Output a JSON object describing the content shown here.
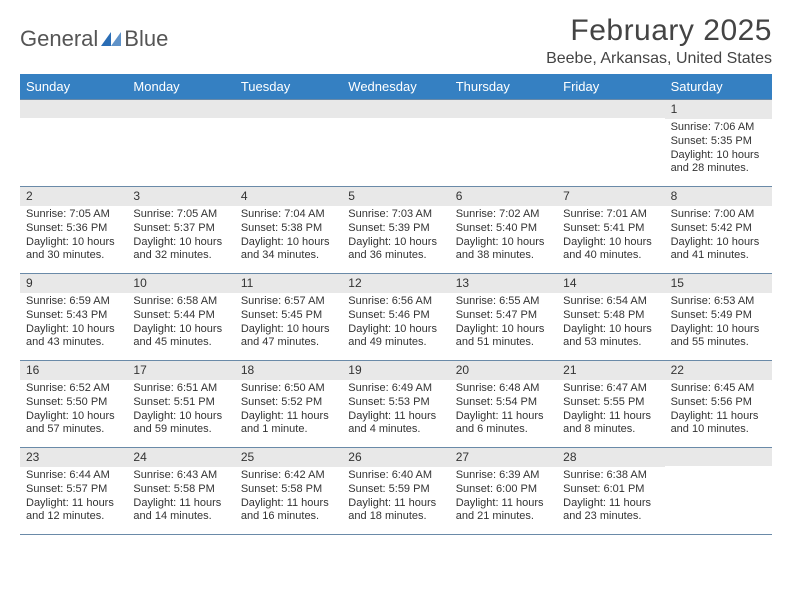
{
  "brand": {
    "textLeft": "General",
    "textRight": "Blue",
    "markColor": "#2a6db5",
    "textColor": "#555555"
  },
  "title": {
    "month": "February 2025",
    "location": "Beebe, Arkansas, United States"
  },
  "colors": {
    "headerBg": "#3580c2",
    "headerFg": "#ffffff",
    "numBg": "#e8e8e8",
    "cellBorder": "#6a8aa8",
    "bodyText": "#333333"
  },
  "dayNames": [
    "Sunday",
    "Monday",
    "Tuesday",
    "Wednesday",
    "Thursday",
    "Friday",
    "Saturday"
  ],
  "weeks": [
    [
      null,
      null,
      null,
      null,
      null,
      null,
      {
        "n": "1",
        "sunrise": "Sunrise: 7:06 AM",
        "sunset": "Sunset: 5:35 PM",
        "day1": "Daylight: 10 hours",
        "day2": "and 28 minutes."
      }
    ],
    [
      {
        "n": "2",
        "sunrise": "Sunrise: 7:05 AM",
        "sunset": "Sunset: 5:36 PM",
        "day1": "Daylight: 10 hours",
        "day2": "and 30 minutes."
      },
      {
        "n": "3",
        "sunrise": "Sunrise: 7:05 AM",
        "sunset": "Sunset: 5:37 PM",
        "day1": "Daylight: 10 hours",
        "day2": "and 32 minutes."
      },
      {
        "n": "4",
        "sunrise": "Sunrise: 7:04 AM",
        "sunset": "Sunset: 5:38 PM",
        "day1": "Daylight: 10 hours",
        "day2": "and 34 minutes."
      },
      {
        "n": "5",
        "sunrise": "Sunrise: 7:03 AM",
        "sunset": "Sunset: 5:39 PM",
        "day1": "Daylight: 10 hours",
        "day2": "and 36 minutes."
      },
      {
        "n": "6",
        "sunrise": "Sunrise: 7:02 AM",
        "sunset": "Sunset: 5:40 PM",
        "day1": "Daylight: 10 hours",
        "day2": "and 38 minutes."
      },
      {
        "n": "7",
        "sunrise": "Sunrise: 7:01 AM",
        "sunset": "Sunset: 5:41 PM",
        "day1": "Daylight: 10 hours",
        "day2": "and 40 minutes."
      },
      {
        "n": "8",
        "sunrise": "Sunrise: 7:00 AM",
        "sunset": "Sunset: 5:42 PM",
        "day1": "Daylight: 10 hours",
        "day2": "and 41 minutes."
      }
    ],
    [
      {
        "n": "9",
        "sunrise": "Sunrise: 6:59 AM",
        "sunset": "Sunset: 5:43 PM",
        "day1": "Daylight: 10 hours",
        "day2": "and 43 minutes."
      },
      {
        "n": "10",
        "sunrise": "Sunrise: 6:58 AM",
        "sunset": "Sunset: 5:44 PM",
        "day1": "Daylight: 10 hours",
        "day2": "and 45 minutes."
      },
      {
        "n": "11",
        "sunrise": "Sunrise: 6:57 AM",
        "sunset": "Sunset: 5:45 PM",
        "day1": "Daylight: 10 hours",
        "day2": "and 47 minutes."
      },
      {
        "n": "12",
        "sunrise": "Sunrise: 6:56 AM",
        "sunset": "Sunset: 5:46 PM",
        "day1": "Daylight: 10 hours",
        "day2": "and 49 minutes."
      },
      {
        "n": "13",
        "sunrise": "Sunrise: 6:55 AM",
        "sunset": "Sunset: 5:47 PM",
        "day1": "Daylight: 10 hours",
        "day2": "and 51 minutes."
      },
      {
        "n": "14",
        "sunrise": "Sunrise: 6:54 AM",
        "sunset": "Sunset: 5:48 PM",
        "day1": "Daylight: 10 hours",
        "day2": "and 53 minutes."
      },
      {
        "n": "15",
        "sunrise": "Sunrise: 6:53 AM",
        "sunset": "Sunset: 5:49 PM",
        "day1": "Daylight: 10 hours",
        "day2": "and 55 minutes."
      }
    ],
    [
      {
        "n": "16",
        "sunrise": "Sunrise: 6:52 AM",
        "sunset": "Sunset: 5:50 PM",
        "day1": "Daylight: 10 hours",
        "day2": "and 57 minutes."
      },
      {
        "n": "17",
        "sunrise": "Sunrise: 6:51 AM",
        "sunset": "Sunset: 5:51 PM",
        "day1": "Daylight: 10 hours",
        "day2": "and 59 minutes."
      },
      {
        "n": "18",
        "sunrise": "Sunrise: 6:50 AM",
        "sunset": "Sunset: 5:52 PM",
        "day1": "Daylight: 11 hours",
        "day2": "and 1 minute."
      },
      {
        "n": "19",
        "sunrise": "Sunrise: 6:49 AM",
        "sunset": "Sunset: 5:53 PM",
        "day1": "Daylight: 11 hours",
        "day2": "and 4 minutes."
      },
      {
        "n": "20",
        "sunrise": "Sunrise: 6:48 AM",
        "sunset": "Sunset: 5:54 PM",
        "day1": "Daylight: 11 hours",
        "day2": "and 6 minutes."
      },
      {
        "n": "21",
        "sunrise": "Sunrise: 6:47 AM",
        "sunset": "Sunset: 5:55 PM",
        "day1": "Daylight: 11 hours",
        "day2": "and 8 minutes."
      },
      {
        "n": "22",
        "sunrise": "Sunrise: 6:45 AM",
        "sunset": "Sunset: 5:56 PM",
        "day1": "Daylight: 11 hours",
        "day2": "and 10 minutes."
      }
    ],
    [
      {
        "n": "23",
        "sunrise": "Sunrise: 6:44 AM",
        "sunset": "Sunset: 5:57 PM",
        "day1": "Daylight: 11 hours",
        "day2": "and 12 minutes."
      },
      {
        "n": "24",
        "sunrise": "Sunrise: 6:43 AM",
        "sunset": "Sunset: 5:58 PM",
        "day1": "Daylight: 11 hours",
        "day2": "and 14 minutes."
      },
      {
        "n": "25",
        "sunrise": "Sunrise: 6:42 AM",
        "sunset": "Sunset: 5:58 PM",
        "day1": "Daylight: 11 hours",
        "day2": "and 16 minutes."
      },
      {
        "n": "26",
        "sunrise": "Sunrise: 6:40 AM",
        "sunset": "Sunset: 5:59 PM",
        "day1": "Daylight: 11 hours",
        "day2": "and 18 minutes."
      },
      {
        "n": "27",
        "sunrise": "Sunrise: 6:39 AM",
        "sunset": "Sunset: 6:00 PM",
        "day1": "Daylight: 11 hours",
        "day2": "and 21 minutes."
      },
      {
        "n": "28",
        "sunrise": "Sunrise: 6:38 AM",
        "sunset": "Sunset: 6:01 PM",
        "day1": "Daylight: 11 hours",
        "day2": "and 23 minutes."
      },
      null
    ]
  ]
}
